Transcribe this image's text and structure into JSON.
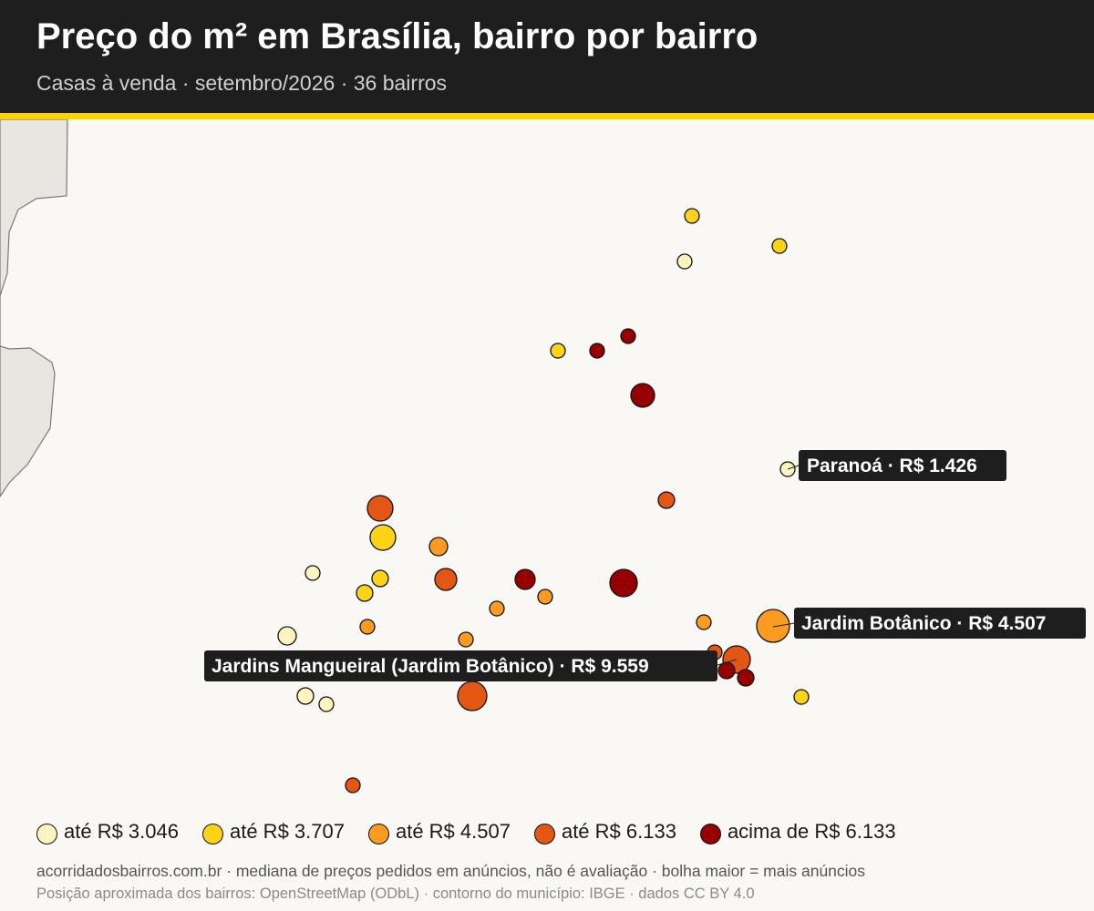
{
  "header": {
    "title": "Preço do m² em Brasília, bairro por bairro",
    "subtitle": "Casas à venda · setembro/2026 · 36 bairros"
  },
  "colors": {
    "header_bg": "#1e1e1e",
    "accent": "#f9d300",
    "land": "#e8e6e1",
    "map_bg": "#faf8f4",
    "label_bg": "#1e1e1e"
  },
  "legend": [
    {
      "label": "até R$ 3.046",
      "color": "#fff4c0"
    },
    {
      "label": "até R$ 3.707",
      "color": "#fdd316"
    },
    {
      "label": "até R$ 4.507",
      "color": "#fb9b20"
    },
    {
      "label": "até R$ 6.133",
      "color": "#e45613"
    },
    {
      "label": "acima de R$ 6.133",
      "color": "#960000"
    }
  ],
  "callouts": [
    {
      "text": "Paranoá · R$ 1.426"
    },
    {
      "text": "Jardim Botânico · R$ 4.507"
    },
    {
      "text": "Jardins Mangueiral (Jardim Botânico) · R$ 9.559"
    }
  ],
  "footer": {
    "line1": "acorridadosbairros.com.br · mediana de preços pedidos em anúncios, não é avaliação · bolha maior = mais anúncios",
    "line2": "Posição aproximada dos bairros: OpenStreetMap (ODbL) · contorno do município: IBGE · dados CC BY 4.0"
  }
}
